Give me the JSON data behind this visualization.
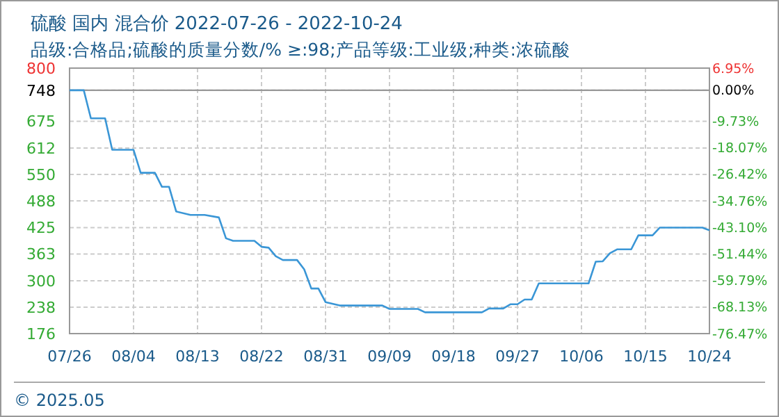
{
  "chart_data": {
    "type": "line",
    "title": "硫酸 国内 混合价 2022-07-26 - 2022-10-24",
    "subtitle": "品级:合格品;硫酸的质量分数/% ≥:98;产品等级:工业级;种类:浓硫酸",
    "x": [
      "2022-07-26",
      "2022-07-28",
      "2022-07-29",
      "2022-07-31",
      "2022-08-01",
      "2022-08-04",
      "2022-08-05",
      "2022-08-07",
      "2022-08-08",
      "2022-08-09",
      "2022-08-10",
      "2022-08-12",
      "2022-08-14",
      "2022-08-16",
      "2022-08-17",
      "2022-08-18",
      "2022-08-21",
      "2022-08-22",
      "2022-08-23",
      "2022-08-24",
      "2022-08-25",
      "2022-08-27",
      "2022-08-28",
      "2022-08-29",
      "2022-08-30",
      "2022-08-31",
      "2022-09-02",
      "2022-09-08",
      "2022-09-09",
      "2022-09-13",
      "2022-09-14",
      "2022-09-22",
      "2022-09-23",
      "2022-09-25",
      "2022-09-26",
      "2022-09-27",
      "2022-09-28",
      "2022-09-29",
      "2022-09-30",
      "2022-10-07",
      "2022-10-08",
      "2022-10-09",
      "2022-10-10",
      "2022-10-11",
      "2022-10-13",
      "2022-10-14",
      "2022-10-16",
      "2022-10-17",
      "2022-10-23",
      "2022-10-24"
    ],
    "series": [
      {
        "color": "#3a96d6",
        "values": [
          748,
          748,
          682,
          682,
          608,
          608,
          554,
          554,
          521,
          521,
          463,
          455,
          455,
          449,
          400,
          394,
          394,
          380,
          378,
          358,
          349,
          349,
          327,
          282,
          282,
          250,
          242,
          242,
          234,
          234,
          226,
          226,
          235,
          235,
          245,
          245,
          256,
          256,
          294,
          294,
          345,
          346,
          365,
          374,
          374,
          407,
          407,
          425,
          425,
          419
        ]
      }
    ],
    "xlim": [
      "2022-07-26",
      "2022-10-24"
    ],
    "xticks": [
      {
        "value": "2022-07-26",
        "label": "07/26"
      },
      {
        "value": "2022-08-04",
        "label": "08/04"
      },
      {
        "value": "2022-08-13",
        "label": "08/13"
      },
      {
        "value": "2022-08-22",
        "label": "08/22"
      },
      {
        "value": "2022-08-31",
        "label": "08/31"
      },
      {
        "value": "2022-09-09",
        "label": "09/09"
      },
      {
        "value": "2022-09-18",
        "label": "09/18"
      },
      {
        "value": "2022-09-27",
        "label": "09/27"
      },
      {
        "value": "2022-10-06",
        "label": "10/06"
      },
      {
        "value": "2022-10-15",
        "label": "10/15"
      },
      {
        "value": "2022-10-24",
        "label": "10/24"
      }
    ],
    "ylim": [
      176,
      800
    ],
    "yticks": [
      176,
      238,
      300,
      363,
      425,
      488,
      550,
      612,
      675,
      748,
      800
    ],
    "y2lim": [
      -76.47,
      6.95
    ],
    "y2ticks": [
      {
        "value": -76.47,
        "label": "-76.47%"
      },
      {
        "value": -68.13,
        "label": "-68.13%"
      },
      {
        "value": -59.79,
        "label": "-59.79%"
      },
      {
        "value": -51.44,
        "label": "-51.44%"
      },
      {
        "value": -43.1,
        "label": "-43.10%"
      },
      {
        "value": -34.76,
        "label": "-34.76%"
      },
      {
        "value": -26.42,
        "label": "-26.42%"
      },
      {
        "value": -18.07,
        "label": "-18.07%"
      },
      {
        "value": -9.73,
        "label": "-9.73%"
      },
      {
        "value": 0,
        "label": "0.00%"
      },
      {
        "value": 6.95,
        "label": "6.95%"
      }
    ],
    "ref_lines": [
      {
        "axis": "y",
        "value": 748,
        "color": "#999999",
        "line_style": "solid"
      }
    ],
    "grid": true,
    "line_style": "solid",
    "marker": "none",
    "annotations": [
      "© 2025.05"
    ]
  }
}
